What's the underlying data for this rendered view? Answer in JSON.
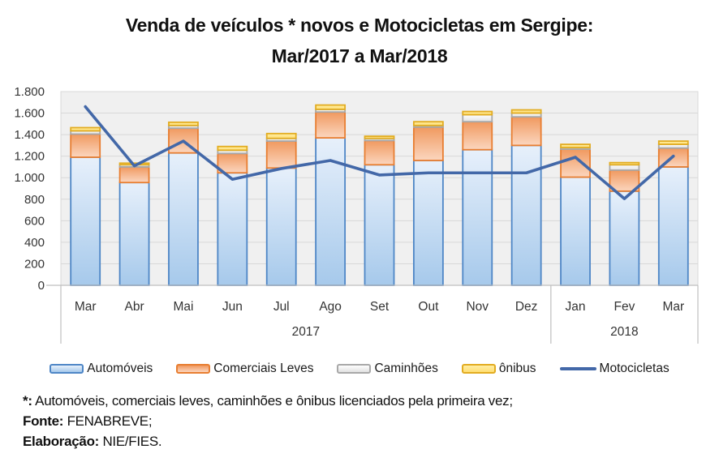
{
  "title": {
    "line1": "Venda de veículos * novos e Motocicletas em Sergipe:",
    "line2": "Mar/2017 a Mar/2018"
  },
  "chart_data": {
    "type": "combo-stacked-bar-line",
    "categories": [
      "Mar",
      "Abr",
      "Mai",
      "Jun",
      "Jul",
      "Ago",
      "Set",
      "Out",
      "Nov",
      "Dez",
      "Jan",
      "Fev",
      "Mar"
    ],
    "group_labels": [
      {
        "label": "2017",
        "from": 0,
        "to": 9
      },
      {
        "label": "2018",
        "from": 10,
        "to": 12
      }
    ],
    "series": [
      {
        "name": "Automóveis",
        "type": "bar",
        "stack": true,
        "values": [
          1190,
          955,
          1230,
          1045,
          1090,
          1370,
          1120,
          1160,
          1260,
          1300,
          1005,
          875,
          1100
        ]
      },
      {
        "name": "Comerciais Leves",
        "type": "bar",
        "stack": true,
        "values": [
          215,
          145,
          230,
          180,
          250,
          240,
          225,
          310,
          260,
          265,
          260,
          195,
          175
        ]
      },
      {
        "name": "Caminhões",
        "type": "bar",
        "stack": true,
        "values": [
          30,
          20,
          25,
          30,
          25,
          25,
          20,
          15,
          65,
          35,
          15,
          50,
          35
        ]
      },
      {
        "name": "ônibus",
        "type": "bar",
        "stack": true,
        "values": [
          30,
          15,
          30,
          35,
          45,
          40,
          20,
          35,
          30,
          30,
          30,
          20,
          30
        ]
      },
      {
        "name": "Motocicletas",
        "type": "line",
        "values": [
          1660,
          1110,
          1340,
          985,
          1085,
          1160,
          1025,
          1045,
          1045,
          1045,
          1190,
          805,
          1200
        ]
      }
    ],
    "ylim": [
      0,
      1800
    ],
    "y_tick_interval": 200,
    "y_ticks": [
      "1.800",
      "1.600",
      "1.400",
      "1.200",
      "1.000",
      "800",
      "600",
      "400",
      "200",
      "0"
    ],
    "grid": true,
    "legend_position": "bottom",
    "colors": {
      "automoveis": {
        "fill_top": "#E7F0FB",
        "fill_bottom": "#A6C9EB",
        "border": "#4E86C6"
      },
      "comerciais_leves": {
        "fill_top": "#F0995F",
        "fill_bottom": "#FBD6BF",
        "border": "#E87E31"
      },
      "caminhoes": {
        "fill_top": "#FDFDFD",
        "fill_bottom": "#E2E2E2",
        "border": "#A8A8A8"
      },
      "onibus": {
        "fill_top": "#FFEDA3",
        "fill_bottom": "#FFDF74",
        "border": "#E2AC21"
      },
      "motocicletas_line": "#4368A8",
      "plot_bg": "#F0F0F0",
      "gridline": "#D8D8D8",
      "axis_line": "#BFBFBF",
      "tick_text": "#333333"
    }
  },
  "footnotes": [
    {
      "bold": "*:",
      "text": " Automóveis, comerciais leves, caminhões e ônibus licenciados pela primeira vez;"
    },
    {
      "bold": "Fonte:",
      "text": " FENABREVE;"
    },
    {
      "bold": "Elaboração:",
      "text": " NIE/FIES."
    }
  ]
}
